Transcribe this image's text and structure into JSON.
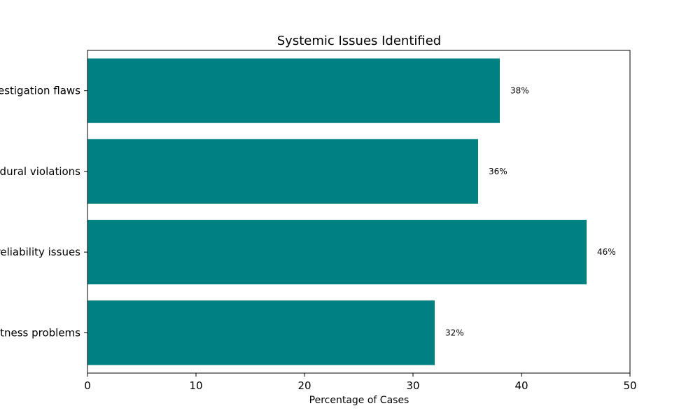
{
  "chart_data": {
    "type": "bar",
    "orientation": "horizontal",
    "title": "Systemic Issues Identified",
    "xlabel": "Percentage of Cases",
    "ylabel": "",
    "categories_visible": [
      "estigation flaws",
      "edural violations",
      "reliability issues",
      "tness problems"
    ],
    "values": [
      38,
      36,
      46,
      32
    ],
    "data_labels": [
      "38%",
      "36%",
      "46%",
      "32%"
    ],
    "xlim": [
      0,
      50
    ],
    "xticks": [
      0,
      10,
      20,
      30,
      40,
      50
    ],
    "xtick_labels": [
      "0",
      "10",
      "20",
      "30",
      "40",
      "50"
    ],
    "grid": false,
    "legend": "none",
    "bar_color": "#008080"
  }
}
